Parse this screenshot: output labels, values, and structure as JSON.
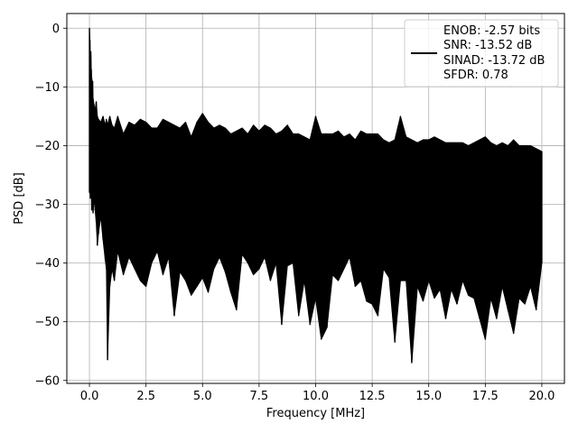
{
  "chart_data": {
    "type": "line",
    "title": "",
    "xlabel": "Frequency [MHz]",
    "ylabel": "PSD [dB]",
    "xlim": [
      -1.0,
      21.0
    ],
    "ylim": [
      -60.5,
      2.5
    ],
    "xticks": [
      0.0,
      2.5,
      5.0,
      7.5,
      10.0,
      12.5,
      15.0,
      17.5,
      20.0
    ],
    "xtick_labels": [
      "0.0",
      "2.5",
      "5.0",
      "7.5",
      "10.0",
      "12.5",
      "15.0",
      "17.5",
      "20.0"
    ],
    "yticks": [
      0,
      -10,
      -20,
      -30,
      -40,
      -50,
      -60
    ],
    "ytick_labels": [
      "0",
      "−10",
      "−20",
      "−30",
      "−40",
      "−50",
      "−60"
    ],
    "grid": true,
    "legend_position": "top-right",
    "legend_lines": [
      "ENOB: -2.57 bits",
      "SNR: -13.52 dB",
      "SINAD: -13.72 dB",
      "SFDR: 0.78"
    ],
    "series": [
      {
        "color": "#000000",
        "x": [
          0.0,
          0.02,
          0.04,
          0.06,
          0.08,
          0.1,
          0.12,
          0.14,
          0.16,
          0.2,
          0.25,
          0.3,
          0.35,
          0.4,
          0.5,
          0.6,
          0.7,
          0.75,
          0.8,
          0.9,
          1.0,
          1.1,
          1.25,
          1.5,
          1.75,
          2.0,
          2.25,
          2.5,
          2.75,
          3.0,
          3.25,
          3.5,
          3.75,
          4.0,
          4.25,
          4.5,
          4.75,
          5.0,
          5.25,
          5.5,
          5.75,
          6.0,
          6.25,
          6.5,
          6.75,
          7.0,
          7.25,
          7.5,
          7.75,
          8.0,
          8.25,
          8.5,
          8.75,
          9.0,
          9.25,
          9.5,
          9.75,
          10.0,
          10.25,
          10.5,
          10.75,
          11.0,
          11.25,
          11.5,
          11.75,
          12.0,
          12.25,
          12.5,
          12.75,
          13.0,
          13.25,
          13.5,
          13.75,
          14.0,
          14.25,
          14.5,
          14.75,
          15.0,
          15.25,
          15.5,
          15.75,
          16.0,
          16.25,
          16.5,
          16.75,
          17.0,
          17.25,
          17.5,
          17.75,
          18.0,
          18.25,
          18.5,
          18.75,
          19.0,
          19.25,
          19.5,
          19.75,
          20.0
        ],
        "y_upper": [
          0.0,
          -2.0,
          -5.0,
          -4.0,
          -7.0,
          -8.5,
          -10.0,
          -9.0,
          -12.0,
          -13.0,
          -14.0,
          -12.5,
          -15.0,
          -15.5,
          -16.0,
          -15.0,
          -16.5,
          -15.5,
          -16.5,
          -15.0,
          -16.5,
          -17.0,
          -15.0,
          -18.0,
          -16.0,
          -16.5,
          -15.5,
          -16.0,
          -17.0,
          -17.0,
          -15.5,
          -16.0,
          -16.5,
          -17.0,
          -16.0,
          -18.5,
          -16.0,
          -14.5,
          -16.0,
          -17.0,
          -16.5,
          -17.0,
          -18.0,
          -17.5,
          -17.0,
          -18.0,
          -16.5,
          -17.5,
          -16.5,
          -17.0,
          -18.0,
          -17.5,
          -16.5,
          -18.0,
          -18.0,
          -18.5,
          -19.0,
          -15.0,
          -18.0,
          -18.0,
          -18.0,
          -17.5,
          -18.5,
          -18.0,
          -19.0,
          -17.5,
          -18.0,
          -18.0,
          -18.0,
          -19.0,
          -19.5,
          -19.0,
          -15.0,
          -18.5,
          -19.0,
          -19.5,
          -19.0,
          -19.0,
          -18.5,
          -19.0,
          -19.5,
          -19.5,
          -19.5,
          -19.5,
          -20.0,
          -19.5,
          -19.0,
          -18.5,
          -19.5,
          -20.0,
          -19.5,
          -20.0,
          -19.0,
          -20.0,
          -20.0,
          -20.0,
          -20.5,
          -21.0
        ],
        "y_lower": [
          -28.0,
          -27.0,
          -29.0,
          -28.0,
          -26.0,
          -31.0,
          -29.5,
          -30.5,
          -31.5,
          -29.0,
          -31.0,
          -33.0,
          -37.0,
          -35.0,
          -32.0,
          -36.0,
          -39.5,
          -41.0,
          -56.5,
          -44.0,
          -41.0,
          -43.0,
          -38.0,
          -42.0,
          -39.0,
          -41.0,
          -43.0,
          -44.0,
          -40.0,
          -38.0,
          -42.0,
          -39.0,
          -49.0,
          -41.5,
          -43.0,
          -45.5,
          -44.0,
          -42.5,
          -45.0,
          -41.0,
          -39.0,
          -41.5,
          -45.0,
          -48.0,
          -38.5,
          -40.0,
          -42.0,
          -41.0,
          -39.0,
          -43.0,
          -40.0,
          -50.5,
          -40.5,
          -40.0,
          -49.0,
          -43.0,
          -50.5,
          -46.0,
          -53.0,
          -51.0,
          -42.0,
          -43.0,
          -41.0,
          -39.0,
          -44.0,
          -43.0,
          -46.5,
          -47.0,
          -49.0,
          -41.0,
          -42.5,
          -53.5,
          -43.0,
          -43.0,
          -57.0,
          -44.0,
          -46.5,
          -43.0,
          -46.0,
          -44.5,
          -49.5,
          -44.5,
          -47.0,
          -43.0,
          -45.5,
          -46.0,
          -49.5,
          -53.0,
          -46.0,
          -49.5,
          -44.0,
          -48.0,
          -52.0,
          -46.0,
          -47.0,
          -44.0,
          -48.0,
          -40.0
        ]
      }
    ]
  }
}
